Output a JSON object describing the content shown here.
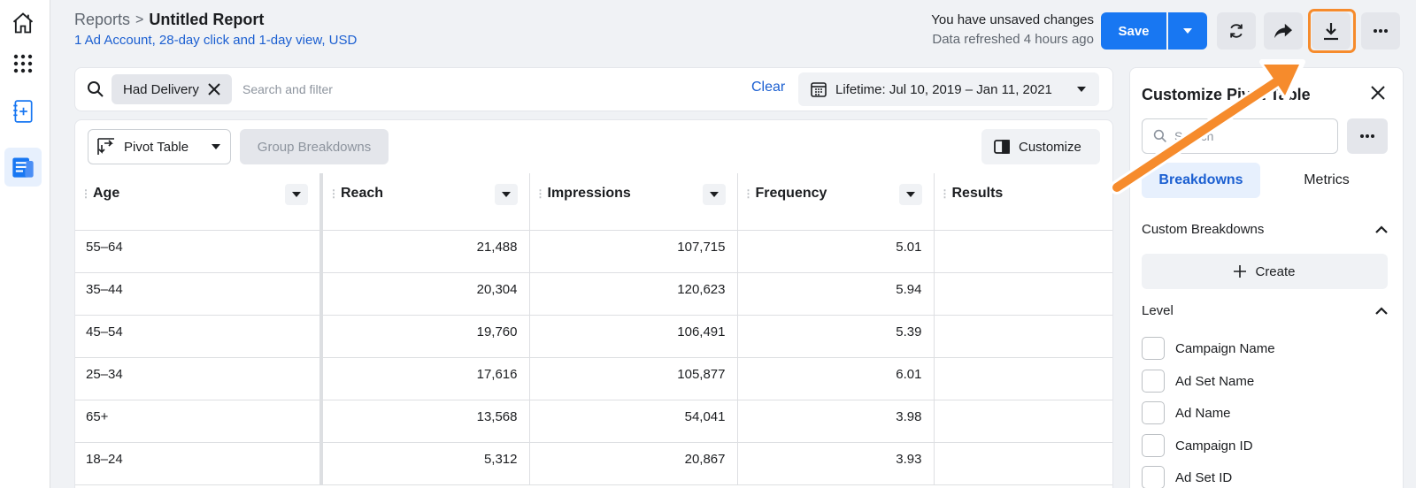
{
  "nav": {
    "items": [
      {
        "icon": "home-icon",
        "active": false
      },
      {
        "icon": "apps-grid-icon",
        "active": false
      },
      {
        "icon": "add-report-icon",
        "active": false
      },
      {
        "icon": "reports-icon",
        "active": true
      }
    ]
  },
  "header": {
    "breadcrumb_parent": "Reports",
    "breadcrumb_sep": ">",
    "title": "Untitled Report",
    "subtitle": "1 Ad Account, 28-day click and 1-day view, USD",
    "status_line1": "You have unsaved changes",
    "status_line2": "Data refreshed 4 hours ago",
    "save_label": "Save",
    "accent": "#1877f2",
    "highlight_color": "#f68b2c"
  },
  "filter": {
    "chip_label": "Had Delivery",
    "search_placeholder": "Search and filter",
    "clear_label": "Clear",
    "date_label": "Lifetime: Jul 10, 2019 – Jan 11, 2021"
  },
  "toolbar": {
    "pivot_label": "Pivot Table",
    "group_label": "Group Breakdowns",
    "customize_label": "Customize"
  },
  "table": {
    "columns": [
      "Age",
      "Reach",
      "Impressions",
      "Frequency",
      "Results"
    ],
    "rows": [
      {
        "age": "55–64",
        "reach": "21,488",
        "impressions": "107,715",
        "frequency": "5.01",
        "results": ""
      },
      {
        "age": "35–44",
        "reach": "20,304",
        "impressions": "120,623",
        "frequency": "5.94",
        "results": ""
      },
      {
        "age": "45–54",
        "reach": "19,760",
        "impressions": "106,491",
        "frequency": "5.39",
        "results": ""
      },
      {
        "age": "25–34",
        "reach": "17,616",
        "impressions": "105,877",
        "frequency": "6.01",
        "results": ""
      },
      {
        "age": "65+",
        "reach": "13,568",
        "impressions": "54,041",
        "frequency": "3.98",
        "results": ""
      },
      {
        "age": "18–24",
        "reach": "5,312",
        "impressions": "20,867",
        "frequency": "3.93",
        "results": ""
      }
    ]
  },
  "sidepanel": {
    "title": "Customize Pivot Table",
    "search_placeholder": "Search",
    "tabs": [
      "Breakdowns",
      "Metrics"
    ],
    "custom_breakdowns_label": "Custom Breakdowns",
    "create_label": "Create",
    "level_label": "Level",
    "level_items": [
      "Campaign Name",
      "Ad Set Name",
      "Ad Name",
      "Campaign ID",
      "Ad Set ID"
    ]
  }
}
